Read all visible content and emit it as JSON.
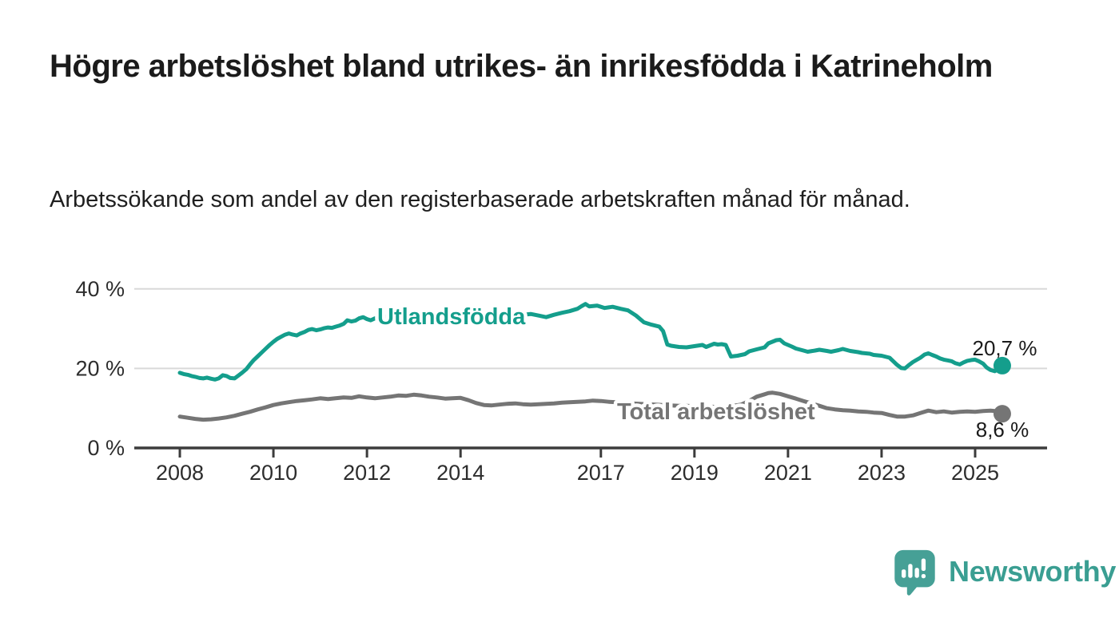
{
  "title": "Högre arbetslöshet bland utrikes- än inrikesfödda i Katrineholm",
  "subtitle": "Arbetssökande som andel av den registerbaserade arbetskraften månad för månad.",
  "branding": {
    "logo_text": "Newsworthy",
    "logo_icon": "bar-chart-speech-bubble-icon",
    "logo_color": "#46a096",
    "wordmark_color": "#3a9e92"
  },
  "chart_data": {
    "type": "line",
    "title": "Högre arbetslöshet bland utrikes- än inrikesfödda i Katrineholm",
    "subtitle": "Arbetssökande som andel av den registerbaserade arbetskraften månad för månad.",
    "xlabel": "",
    "ylabel": "",
    "grid": "horizontal",
    "x_range": [
      2007.0,
      2026.5
    ],
    "ylim": [
      0,
      42
    ],
    "x_ticks": {
      "values": [
        2008,
        2010,
        2012,
        2014,
        2017,
        2019,
        2021,
        2023,
        2025
      ],
      "labels": [
        "2008",
        "2010",
        "2012",
        "2014",
        "2017",
        "2019",
        "2021",
        "2023",
        "2025"
      ]
    },
    "y_ticks": {
      "values": [
        40,
        20,
        0
      ],
      "labels": [
        "40 %",
        "20 %",
        "0 %"
      ]
    },
    "colors": {
      "grid": "#d9d9d9",
      "axis": "#3c3c3c",
      "tick_text": "#2d2d2d",
      "value_text": "#1a1a1a"
    },
    "series": [
      {
        "name": "Utlandsfödda",
        "color": "#149e8c",
        "end_label": "20,7 %",
        "last_value": 20.7,
        "points": [
          [
            2008.0,
            18.9
          ],
          [
            2008.08,
            18.6
          ],
          [
            2008.17,
            18.4
          ],
          [
            2008.25,
            18.1
          ],
          [
            2008.33,
            17.9
          ],
          [
            2008.42,
            17.6
          ],
          [
            2008.5,
            17.5
          ],
          [
            2008.58,
            17.7
          ],
          [
            2008.67,
            17.4
          ],
          [
            2008.75,
            17.2
          ],
          [
            2008.83,
            17.5
          ],
          [
            2008.92,
            18.3
          ],
          [
            2009.0,
            18.1
          ],
          [
            2009.08,
            17.6
          ],
          [
            2009.17,
            17.5
          ],
          [
            2009.25,
            18.2
          ],
          [
            2009.33,
            18.9
          ],
          [
            2009.42,
            19.8
          ],
          [
            2009.5,
            21.0
          ],
          [
            2009.58,
            22.1
          ],
          [
            2009.67,
            23.1
          ],
          [
            2009.75,
            24.0
          ],
          [
            2009.83,
            24.9
          ],
          [
            2009.92,
            25.9
          ],
          [
            2010.0,
            26.7
          ],
          [
            2010.08,
            27.4
          ],
          [
            2010.17,
            28.0
          ],
          [
            2010.25,
            28.5
          ],
          [
            2010.33,
            28.8
          ],
          [
            2010.42,
            28.5
          ],
          [
            2010.5,
            28.3
          ],
          [
            2010.58,
            28.8
          ],
          [
            2010.67,
            29.2
          ],
          [
            2010.75,
            29.7
          ],
          [
            2010.83,
            29.9
          ],
          [
            2010.92,
            29.6
          ],
          [
            2011.0,
            29.8
          ],
          [
            2011.08,
            30.1
          ],
          [
            2011.17,
            30.3
          ],
          [
            2011.25,
            30.2
          ],
          [
            2011.33,
            30.5
          ],
          [
            2011.42,
            30.8
          ],
          [
            2011.5,
            31.2
          ],
          [
            2011.58,
            32.1
          ],
          [
            2011.67,
            31.8
          ],
          [
            2011.75,
            32.0
          ],
          [
            2011.83,
            32.6
          ],
          [
            2011.92,
            32.9
          ],
          [
            2012.0,
            32.4
          ],
          [
            2012.08,
            32.1
          ],
          [
            2012.17,
            32.6
          ],
          [
            2012.25,
            32.9
          ],
          [
            2012.33,
            33.0
          ],
          [
            2012.42,
            33.1
          ],
          [
            2012.5,
            33.2
          ],
          [
            2012.58,
            33.4
          ],
          [
            2012.67,
            33.5
          ],
          [
            2012.75,
            33.6
          ],
          [
            2012.83,
            33.4
          ],
          [
            2012.92,
            33.1
          ],
          [
            2013.0,
            32.8
          ],
          [
            2013.08,
            32.5
          ],
          [
            2013.17,
            32.7
          ],
          [
            2013.25,
            32.8
          ],
          [
            2013.33,
            32.5
          ],
          [
            2013.42,
            32.3
          ],
          [
            2013.5,
            32.1
          ],
          [
            2013.58,
            32.0
          ],
          [
            2013.67,
            32.2
          ],
          [
            2013.75,
            32.5
          ],
          [
            2013.83,
            32.8
          ],
          [
            2013.92,
            33.0
          ],
          [
            2014.0,
            33.1
          ],
          [
            2014.17,
            33.3
          ],
          [
            2014.33,
            33.0
          ],
          [
            2014.5,
            33.2
          ],
          [
            2014.67,
            33.0
          ],
          [
            2014.83,
            33.2
          ],
          [
            2015.0,
            33.4
          ],
          [
            2015.17,
            33.2
          ],
          [
            2015.33,
            33.5
          ],
          [
            2015.5,
            33.7
          ],
          [
            2015.67,
            33.3
          ],
          [
            2015.83,
            32.9
          ],
          [
            2016.0,
            33.5
          ],
          [
            2016.17,
            34.0
          ],
          [
            2016.33,
            34.4
          ],
          [
            2016.5,
            35.0
          ],
          [
            2016.58,
            35.6
          ],
          [
            2016.67,
            36.2
          ],
          [
            2016.75,
            35.6
          ],
          [
            2016.92,
            35.8
          ],
          [
            2017.08,
            35.2
          ],
          [
            2017.25,
            35.5
          ],
          [
            2017.42,
            35.0
          ],
          [
            2017.58,
            34.6
          ],
          [
            2017.75,
            33.3
          ],
          [
            2017.92,
            31.6
          ],
          [
            2018.08,
            31.0
          ],
          [
            2018.25,
            30.5
          ],
          [
            2018.33,
            29.4
          ],
          [
            2018.42,
            26.0
          ],
          [
            2018.5,
            25.7
          ],
          [
            2018.67,
            25.4
          ],
          [
            2018.83,
            25.3
          ],
          [
            2019.0,
            25.6
          ],
          [
            2019.17,
            25.9
          ],
          [
            2019.25,
            25.4
          ],
          [
            2019.42,
            26.2
          ],
          [
            2019.5,
            26.0
          ],
          [
            2019.58,
            26.1
          ],
          [
            2019.67,
            25.9
          ],
          [
            2019.78,
            23.0
          ],
          [
            2019.92,
            23.2
          ],
          [
            2020.08,
            23.6
          ],
          [
            2020.17,
            24.3
          ],
          [
            2020.33,
            24.8
          ],
          [
            2020.5,
            25.3
          ],
          [
            2020.58,
            26.3
          ],
          [
            2020.75,
            27.1
          ],
          [
            2020.83,
            27.2
          ],
          [
            2020.92,
            26.3
          ],
          [
            2021.08,
            25.5
          ],
          [
            2021.17,
            25.0
          ],
          [
            2021.33,
            24.5
          ],
          [
            2021.42,
            24.2
          ],
          [
            2021.58,
            24.5
          ],
          [
            2021.67,
            24.7
          ],
          [
            2021.83,
            24.4
          ],
          [
            2021.92,
            24.2
          ],
          [
            2022.08,
            24.6
          ],
          [
            2022.17,
            24.9
          ],
          [
            2022.33,
            24.4
          ],
          [
            2022.5,
            24.1
          ],
          [
            2022.58,
            23.9
          ],
          [
            2022.75,
            23.7
          ],
          [
            2022.83,
            23.4
          ],
          [
            2023.0,
            23.2
          ],
          [
            2023.17,
            22.7
          ],
          [
            2023.25,
            21.8
          ],
          [
            2023.33,
            20.9
          ],
          [
            2023.42,
            20.1
          ],
          [
            2023.5,
            20.0
          ],
          [
            2023.58,
            20.8
          ],
          [
            2023.67,
            21.6
          ],
          [
            2023.83,
            22.7
          ],
          [
            2023.92,
            23.5
          ],
          [
            2024.0,
            23.8
          ],
          [
            2024.08,
            23.4
          ],
          [
            2024.17,
            23.0
          ],
          [
            2024.25,
            22.5
          ],
          [
            2024.33,
            22.2
          ],
          [
            2024.42,
            22.0
          ],
          [
            2024.5,
            21.8
          ],
          [
            2024.58,
            21.3
          ],
          [
            2024.67,
            21.0
          ],
          [
            2024.75,
            21.5
          ],
          [
            2024.83,
            21.9
          ],
          [
            2024.92,
            22.1
          ],
          [
            2025.0,
            22.2
          ],
          [
            2025.08,
            21.8
          ],
          [
            2025.17,
            21.2
          ],
          [
            2025.25,
            20.2
          ],
          [
            2025.33,
            19.6
          ],
          [
            2025.42,
            19.3
          ],
          [
            2025.5,
            20.0
          ],
          [
            2025.58,
            20.7
          ]
        ]
      },
      {
        "name": "Total arbetslöshet",
        "color": "#757575",
        "end_label": "8,6 %",
        "last_value": 8.6,
        "points": [
          [
            2008.0,
            7.9
          ],
          [
            2008.17,
            7.6
          ],
          [
            2008.33,
            7.3
          ],
          [
            2008.5,
            7.1
          ],
          [
            2008.67,
            7.2
          ],
          [
            2008.83,
            7.4
          ],
          [
            2009.0,
            7.7
          ],
          [
            2009.17,
            8.1
          ],
          [
            2009.33,
            8.6
          ],
          [
            2009.5,
            9.1
          ],
          [
            2009.67,
            9.7
          ],
          [
            2009.83,
            10.2
          ],
          [
            2010.0,
            10.8
          ],
          [
            2010.17,
            11.2
          ],
          [
            2010.33,
            11.5
          ],
          [
            2010.5,
            11.8
          ],
          [
            2010.67,
            12.0
          ],
          [
            2010.83,
            12.2
          ],
          [
            2011.0,
            12.5
          ],
          [
            2011.17,
            12.3
          ],
          [
            2011.33,
            12.5
          ],
          [
            2011.5,
            12.7
          ],
          [
            2011.67,
            12.6
          ],
          [
            2011.83,
            13.0
          ],
          [
            2012.0,
            12.7
          ],
          [
            2012.17,
            12.5
          ],
          [
            2012.33,
            12.7
          ],
          [
            2012.5,
            12.9
          ],
          [
            2012.67,
            13.2
          ],
          [
            2012.83,
            13.1
          ],
          [
            2013.0,
            13.4
          ],
          [
            2013.17,
            13.2
          ],
          [
            2013.33,
            12.9
          ],
          [
            2013.5,
            12.7
          ],
          [
            2013.67,
            12.4
          ],
          [
            2013.83,
            12.5
          ],
          [
            2014.0,
            12.6
          ],
          [
            2014.17,
            12.0
          ],
          [
            2014.33,
            11.3
          ],
          [
            2014.5,
            10.8
          ],
          [
            2014.67,
            10.7
          ],
          [
            2014.83,
            10.9
          ],
          [
            2015.0,
            11.1
          ],
          [
            2015.17,
            11.2
          ],
          [
            2015.33,
            11.0
          ],
          [
            2015.5,
            10.9
          ],
          [
            2015.67,
            11.0
          ],
          [
            2015.83,
            11.1
          ],
          [
            2016.0,
            11.2
          ],
          [
            2016.17,
            11.4
          ],
          [
            2016.33,
            11.5
          ],
          [
            2016.5,
            11.6
          ],
          [
            2016.67,
            11.7
          ],
          [
            2016.83,
            11.9
          ],
          [
            2017.0,
            11.8
          ],
          [
            2017.17,
            11.6
          ],
          [
            2017.33,
            11.5
          ],
          [
            2017.5,
            11.4
          ],
          [
            2017.67,
            11.2
          ],
          [
            2017.83,
            11.1
          ],
          [
            2018.0,
            11.0
          ],
          [
            2018.17,
            10.9
          ],
          [
            2018.33,
            10.8
          ],
          [
            2018.5,
            10.7
          ],
          [
            2018.67,
            10.6
          ],
          [
            2018.83,
            10.6
          ],
          [
            2019.0,
            10.5
          ],
          [
            2019.17,
            10.4
          ],
          [
            2019.33,
            10.4
          ],
          [
            2019.5,
            10.3
          ],
          [
            2019.67,
            10.4
          ],
          [
            2019.83,
            10.6
          ],
          [
            2020.0,
            10.9
          ],
          [
            2020.17,
            11.8
          ],
          [
            2020.33,
            12.9
          ],
          [
            2020.5,
            13.5
          ],
          [
            2020.58,
            13.8
          ],
          [
            2020.67,
            13.9
          ],
          [
            2020.83,
            13.6
          ],
          [
            2021.0,
            13.0
          ],
          [
            2021.17,
            12.4
          ],
          [
            2021.33,
            11.8
          ],
          [
            2021.5,
            11.2
          ],
          [
            2021.67,
            10.6
          ],
          [
            2021.83,
            10.0
          ],
          [
            2022.0,
            9.7
          ],
          [
            2022.17,
            9.5
          ],
          [
            2022.33,
            9.4
          ],
          [
            2022.5,
            9.2
          ],
          [
            2022.67,
            9.1
          ],
          [
            2022.83,
            8.9
          ],
          [
            2023.0,
            8.8
          ],
          [
            2023.17,
            8.3
          ],
          [
            2023.33,
            7.9
          ],
          [
            2023.5,
            7.9
          ],
          [
            2023.67,
            8.2
          ],
          [
            2023.83,
            8.8
          ],
          [
            2024.0,
            9.4
          ],
          [
            2024.17,
            9.0
          ],
          [
            2024.33,
            9.2
          ],
          [
            2024.5,
            8.9
          ],
          [
            2024.67,
            9.1
          ],
          [
            2024.83,
            9.2
          ],
          [
            2025.0,
            9.1
          ],
          [
            2025.17,
            9.3
          ],
          [
            2025.33,
            9.4
          ],
          [
            2025.42,
            9.3
          ],
          [
            2025.58,
            8.6
          ]
        ]
      }
    ]
  }
}
